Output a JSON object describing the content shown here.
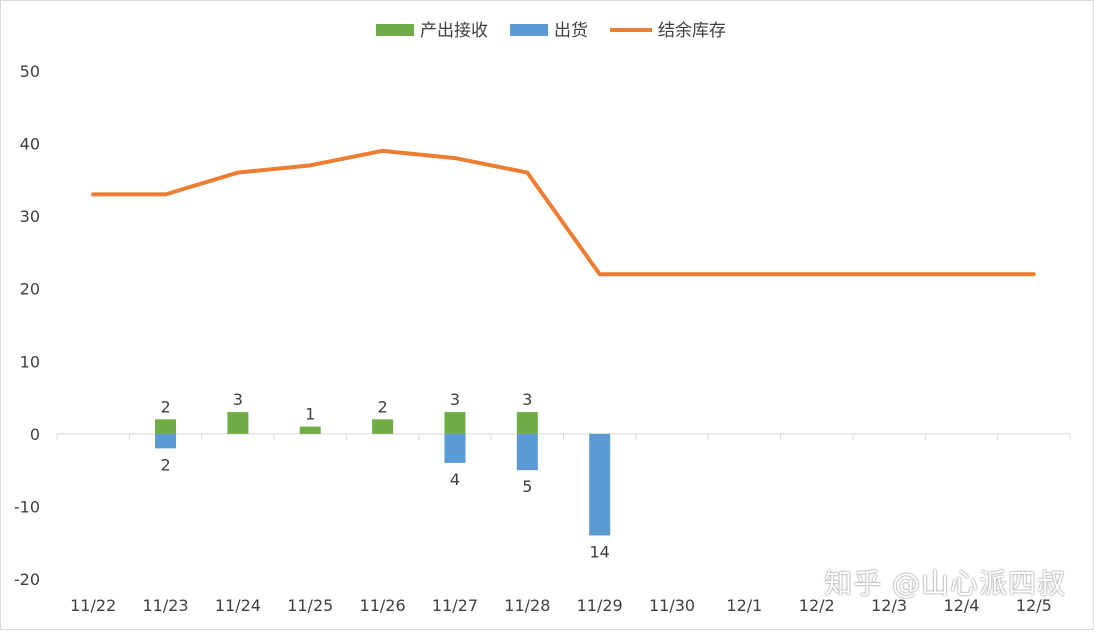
{
  "chart_data": {
    "type": "bar",
    "categories": [
      "11/22",
      "11/23",
      "11/24",
      "11/25",
      "11/26",
      "11/27",
      "11/28",
      "11/29",
      "11/30",
      "12/1",
      "12/2",
      "12/3",
      "12/4",
      "12/5"
    ],
    "series": [
      {
        "name": "产出接收",
        "kind": "bar",
        "color": "#70ad47",
        "values": [
          0,
          2,
          3,
          1,
          2,
          3,
          3,
          0,
          0,
          0,
          0,
          0,
          0,
          0
        ],
        "labels": [
          "",
          "2",
          "3",
          "1",
          "2",
          "3",
          "3",
          "",
          "",
          "",
          "",
          "",
          "",
          ""
        ]
      },
      {
        "name": "出货",
        "kind": "bar",
        "color": "#5b9bd5",
        "values": [
          0,
          -2,
          0,
          0,
          0,
          -4,
          -5,
          -14,
          0,
          0,
          0,
          0,
          0,
          0
        ],
        "labels": [
          "",
          "2",
          "",
          "",
          "",
          "4",
          "5",
          "14",
          "",
          "",
          "",
          "",
          "",
          ""
        ]
      },
      {
        "name": "结余库存",
        "kind": "line",
        "color": "#ed7d31",
        "values": [
          33,
          33,
          36,
          37,
          39,
          38,
          36,
          22,
          22,
          22,
          22,
          22,
          22,
          22
        ]
      }
    ],
    "ylim": [
      -20,
      50
    ],
    "yticks": [
      "50",
      "40",
      "30",
      "20",
      "10",
      "0",
      "-10",
      "-20"
    ],
    "legend_position": "top"
  },
  "watermark": "知乎 @山心派四叔"
}
